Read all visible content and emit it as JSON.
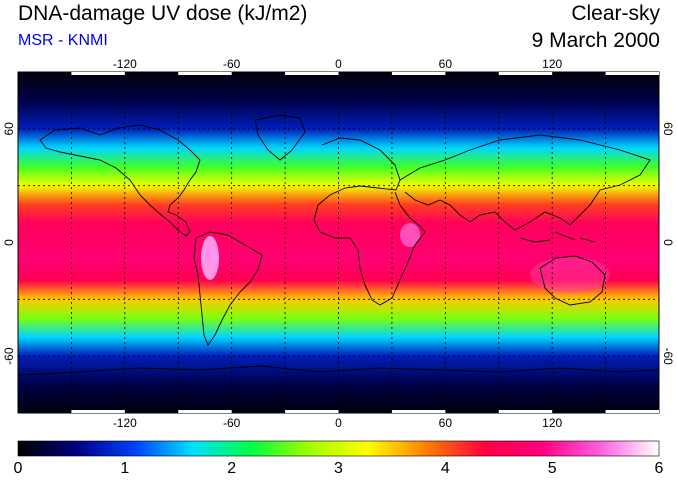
{
  "header": {
    "title": "DNA-damage UV dose (kJ/m2)",
    "source": "MSR - KNMI",
    "condition": "Clear-sky",
    "date": "9 March 2000"
  },
  "map": {
    "projection": "equirectangular",
    "lon_range": [
      -180,
      180
    ],
    "lat_range": [
      -90,
      90
    ],
    "lon_ticks": [
      "-120",
      "-60",
      "0",
      "60",
      "120"
    ],
    "lat_ticks": [
      "60",
      "0",
      "-60"
    ],
    "grid_lons": [
      -150,
      -120,
      -90,
      -60,
      -30,
      0,
      30,
      60,
      90,
      120,
      150
    ],
    "grid_lats": [
      -60,
      -30,
      30,
      60
    ],
    "grid": "dashed",
    "dose_profile_by_latitude": [
      {
        "lat": 90,
        "dose": 0.05
      },
      {
        "lat": 75,
        "dose": 0.3
      },
      {
        "lat": 60,
        "dose": 0.8
      },
      {
        "lat": 50,
        "dose": 1.6
      },
      {
        "lat": 40,
        "dose": 2.4
      },
      {
        "lat": 30,
        "dose": 3.2
      },
      {
        "lat": 20,
        "dose": 4.1
      },
      {
        "lat": 10,
        "dose": 4.6
      },
      {
        "lat": 0,
        "dose": 4.7
      },
      {
        "lat": -10,
        "dose": 4.8
      },
      {
        "lat": -20,
        "dose": 4.5
      },
      {
        "lat": -30,
        "dose": 3.5
      },
      {
        "lat": -40,
        "dose": 2.6
      },
      {
        "lat": -50,
        "dose": 1.6
      },
      {
        "lat": -60,
        "dose": 0.8
      },
      {
        "lat": -75,
        "dose": 0.3
      },
      {
        "lat": -90,
        "dose": 0.05
      }
    ]
  },
  "colorbar": {
    "min": 0,
    "max": 6,
    "labels": [
      "0",
      "1",
      "2",
      "3",
      "4",
      "5",
      "6"
    ],
    "stops": [
      "#000000",
      "#000080",
      "#0040ff",
      "#00e0ff",
      "#00ff40",
      "#a0ff00",
      "#ffff00",
      "#ff8000",
      "#ff0040",
      "#ff0080",
      "#ff60e0",
      "#ffffff"
    ]
  }
}
